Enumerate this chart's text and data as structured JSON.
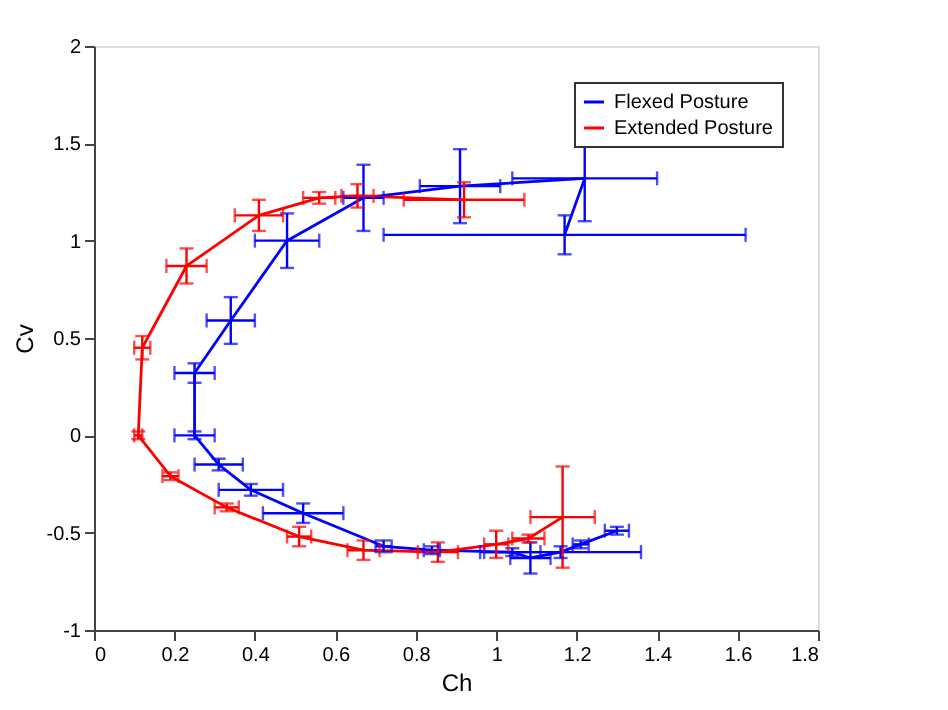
{
  "chart_data": {
    "type": "line",
    "xlabel": "Ch",
    "ylabel": "Cv",
    "xlim": [
      0,
      1.8
    ],
    "xticks": [
      0,
      0.2,
      0.4,
      0.6,
      0.8,
      1,
      1.2,
      1.4,
      1.6,
      1.8
    ],
    "ylim": [
      -1,
      2
    ],
    "yticks": [
      -1,
      -0.5,
      0,
      0.5,
      1,
      1.5,
      2
    ],
    "grid": false,
    "legend": "top right",
    "marker": "none",
    "line_style": "solid",
    "series": [
      {
        "name": "Flexed Posture",
        "color": "#0000ff",
        "x": [
          1.17,
          1.22,
          0.91,
          0.67,
          0.48,
          0.34,
          0.25,
          0.25,
          0.31,
          0.39,
          0.52,
          0.72,
          0.84,
          1.04,
          1.085,
          1.16,
          1.21,
          1.3
        ],
        "values": [
          1.03,
          1.32,
          1.28,
          1.22,
          1.0,
          0.59,
          0.32,
          0.0,
          -0.15,
          -0.28,
          -0.4,
          -0.57,
          -0.59,
          -0.6,
          -0.63,
          -0.6,
          -0.56,
          -0.49
        ],
        "errors": [
          0.1,
          0.22,
          0.19,
          0.17,
          0.14,
          0.12,
          0.05,
          0.02,
          0.03,
          0.03,
          0.05,
          0.03,
          0.02,
          0.02,
          0.08,
          0.03,
          0.02,
          0.02
        ],
        "xerrors": [
          0.45,
          0.18,
          0.1,
          0.05,
          0.08,
          0.06,
          0.05,
          0.05,
          0.06,
          0.08,
          0.1,
          0.02,
          0.02,
          0.07,
          0.05,
          0.2,
          0.02,
          0.03
        ]
      },
      {
        "name": "Extended Posture",
        "color": "#ff0000",
        "x": [
          0.92,
          0.655,
          0.56,
          0.41,
          0.23,
          0.12,
          0.11,
          0.19,
          0.33,
          0.51,
          0.67,
          0.855,
          1.0,
          1.08,
          1.165
        ],
        "values": [
          1.21,
          1.23,
          1.22,
          1.13,
          0.87,
          0.45,
          0.0,
          -0.21,
          -0.37,
          -0.52,
          -0.59,
          -0.6,
          -0.56,
          -0.53,
          -0.42
        ],
        "errors": [
          0.09,
          0.06,
          0.03,
          0.08,
          0.09,
          0.06,
          0.02,
          0.02,
          0.02,
          0.05,
          0.05,
          0.05,
          0.07,
          0.02,
          0.26
        ],
        "xerrors": [
          0.15,
          0.04,
          0.04,
          0.06,
          0.05,
          0.02,
          0.01,
          0.02,
          0.03,
          0.03,
          0.04,
          0.05,
          0.03,
          0.04,
          0.08
        ]
      }
    ]
  }
}
